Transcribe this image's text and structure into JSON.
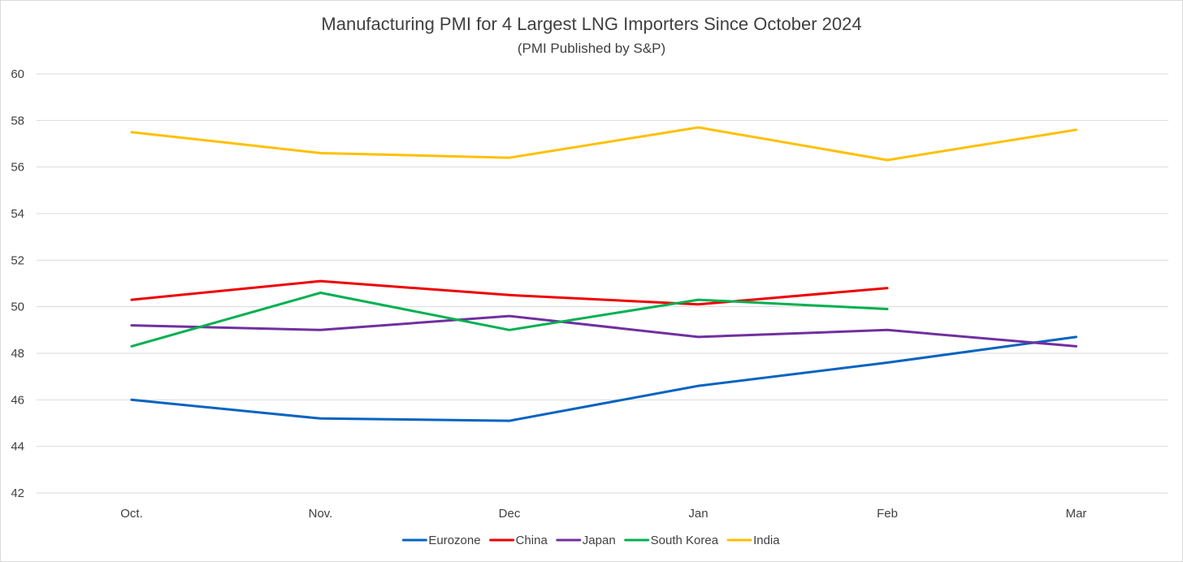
{
  "chart_data": {
    "type": "line",
    "title": "Manufacturing PMI for 4 Largest LNG Importers Since October 2024",
    "subtitle": "(PMI Published by S&P)",
    "xlabel": "",
    "ylabel": "",
    "categories": [
      "Oct.",
      "Nov.",
      "Dec",
      "Jan",
      "Feb",
      "Mar"
    ],
    "ylim": [
      42,
      60
    ],
    "yticks": [
      42,
      44,
      46,
      48,
      50,
      52,
      54,
      56,
      58,
      60
    ],
    "grid": true,
    "legend_position": "bottom",
    "series": [
      {
        "name": "Eurozone",
        "color": "#0563c1",
        "values": [
          46.0,
          45.2,
          45.1,
          46.6,
          47.6,
          48.7
        ]
      },
      {
        "name": "China",
        "color": "#ee0000",
        "values": [
          50.3,
          51.1,
          50.5,
          50.1,
          50.8,
          null
        ]
      },
      {
        "name": "Japan",
        "color": "#7030a0",
        "values": [
          49.2,
          49.0,
          49.6,
          48.7,
          49.0,
          48.3
        ]
      },
      {
        "name": "South Korea",
        "color": "#00b050",
        "values": [
          48.3,
          50.6,
          49.0,
          50.3,
          49.9,
          null
        ]
      },
      {
        "name": "India",
        "color": "#ffc000",
        "values": [
          57.5,
          56.6,
          56.4,
          57.7,
          56.3,
          57.6
        ]
      }
    ]
  }
}
